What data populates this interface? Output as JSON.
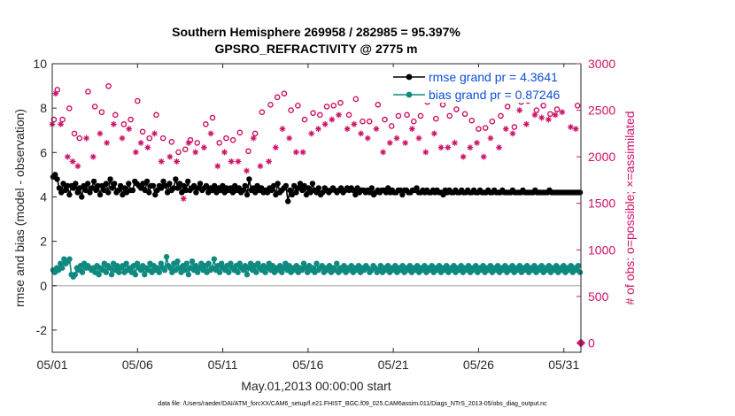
{
  "chart_data": {
    "type": "line",
    "title": "Southern Hemisphere 269958 / 282985 = 95.397%",
    "subtitle": "GPSRO_REFRACTIVITY @ 2775 m",
    "xlabel": "May.01,2013 00:00:00 start",
    "ylabel": "rmse and bias (model - observation)",
    "y2label": "# of obs: o=possible; ×=assimilated",
    "footer": "data file: /Users/raeder/DAI/ATM_forcXX/CAM6_setup/f.e21.FHIST_BGC.f09_025.CAM6assim.011/Diags_NTrS_2013-05/obs_diag_output.nc",
    "x_ticks": [
      "05/01",
      "05/06",
      "05/11",
      "05/16",
      "05/21",
      "05/26",
      "05/31"
    ],
    "x_tick_days": [
      1,
      6,
      11,
      16,
      21,
      26,
      31
    ],
    "xlim": [
      1,
      32
    ],
    "ylim": [
      -3,
      10
    ],
    "y_ticks": [
      "-2",
      "0",
      "2",
      "4",
      "6",
      "8",
      "10"
    ],
    "y_tick_values": [
      -2,
      0,
      2,
      4,
      6,
      8,
      10
    ],
    "y2lim": [
      -100,
      3000
    ],
    "y2_ticks": [
      "0",
      "500",
      "1000",
      "1500",
      "2000",
      "2500",
      "3000"
    ],
    "y2_tick_values": [
      0,
      500,
      1000,
      1500,
      2000,
      2500,
      3000
    ],
    "zero_line": 0,
    "legend_position": "top-right",
    "colors": {
      "rmse": "#000000",
      "bias": "#0f8a80",
      "obs": "#cc1166",
      "zero": "#bdbdbd",
      "legend_text": "#0b4fd6"
    },
    "series": [
      {
        "name": "rmse grand pr = 4.3641",
        "key": "rmse",
        "values": [
          4.9,
          5.0,
          4.8,
          4.4,
          4.2,
          4.6,
          4.3,
          4.5,
          4.1,
          4.5,
          4.4,
          4.6,
          4.2,
          4.4,
          4.0,
          4.5,
          4.3,
          4.6,
          4.2,
          4.4,
          4.7,
          4.3,
          4.5,
          4.1,
          4.5,
          4.3,
          4.6,
          4.2,
          4.8,
          4.4,
          4.6,
          4.2,
          4.3,
          4.5,
          4.1,
          4.4,
          4.2,
          4.6,
          4.3,
          4.3,
          4.7,
          4.6,
          4.5,
          4.4,
          4.6,
          4.3,
          4.7,
          4.2,
          4.5,
          4.5,
          4.1,
          4.3,
          4.5,
          4.4,
          4.7,
          4.5,
          4.2,
          4.6,
          4.3,
          4.4,
          4.8,
          4.4,
          4.6,
          4.2,
          4.5,
          4.3,
          4.7,
          4.3,
          4.4,
          4.5,
          4.2,
          4.4,
          4.6,
          4.3,
          4.4,
          4.5,
          4.2,
          4.4,
          4.3,
          4.5,
          4.2,
          4.4,
          4.3,
          4.5,
          4.2,
          4.4,
          4.3,
          4.4,
          4.2,
          4.5,
          4.3,
          4.4,
          4.2,
          4.3,
          4.5,
          4.1,
          4.8,
          4.3,
          4.4,
          4.2,
          4.5,
          4.3,
          4.4,
          4.2,
          4.3,
          4.2,
          4.4,
          4.3,
          4.5,
          4.1,
          4.6,
          4.2,
          4.3,
          4.4,
          4.5,
          3.8,
          4.3,
          4.1,
          4.5,
          4.2,
          4.4,
          4.6,
          4.3,
          4.5,
          4.1,
          4.4,
          4.2,
          4.6,
          4.3,
          4.2,
          4.4,
          4.1,
          4.2,
          4.4,
          4.3,
          4.2,
          4.3,
          4.4,
          4.3,
          4.2,
          4.3,
          4.4,
          4.2,
          4.3,
          4.4,
          4.3,
          4.4,
          4.3,
          4.1,
          4.4,
          4.2,
          4.3,
          4.3,
          4.2,
          4.3,
          4.2,
          4.4,
          4.1,
          4.2,
          4.3,
          4.2,
          4.3,
          4.3,
          4.2,
          4.4,
          4.2,
          4.3,
          4.2,
          4.2,
          4.3,
          4.3,
          4.1,
          4.3,
          4.3,
          4.2,
          4.2,
          4.3,
          4.3,
          4.4,
          4.2,
          4.2,
          4.3,
          4.2,
          4.3,
          4.2,
          4.2,
          4.3,
          4.2,
          4.3,
          4.2,
          4.2,
          4.1,
          4.3,
          4.2,
          4.3,
          4.2,
          4.2,
          4.3,
          4.2,
          4.2,
          4.3,
          4.2,
          4.2,
          4.3,
          4.2,
          4.2,
          4.3,
          4.2,
          4.2,
          4.3,
          4.2,
          4.2,
          4.2,
          4.3,
          4.2,
          4.2,
          4.3,
          4.2,
          4.2,
          4.2,
          4.3,
          4.2,
          4.2,
          4.2,
          4.2,
          4.3,
          4.2,
          4.2,
          4.2,
          4.2,
          4.3,
          4.2,
          4.2,
          4.2,
          4.2,
          4.2,
          4.3,
          4.2,
          4.2,
          4.2,
          4.2,
          4.2,
          4.2,
          4.3,
          4.2,
          4.2,
          4.2,
          4.2,
          4.2,
          4.2,
          4.2,
          4.2,
          4.2,
          4.2,
          4.2,
          4.2,
          4.2,
          4.2,
          4.2
        ]
      },
      {
        "name": "bias grand pr = 0.87246",
        "key": "bias",
        "values": [
          0.7,
          0.6,
          0.8,
          0.7,
          1.0,
          0.8,
          1.2,
          1.0,
          1.1,
          1.2,
          0.5,
          0.4,
          0.5,
          0.8,
          0.7,
          0.9,
          0.6,
          1.0,
          0.8,
          0.9,
          0.8,
          0.7,
          0.8,
          0.6,
          0.9,
          0.5,
          0.8,
          0.7,
          1.0,
          0.6,
          0.9,
          0.8,
          0.5,
          1.0,
          0.7,
          0.9,
          0.6,
          0.8,
          0.9,
          0.6,
          1.0,
          0.7,
          0.8,
          0.6,
          0.9,
          0.5,
          1.0,
          0.8,
          0.7,
          0.9,
          0.5,
          0.8,
          0.7,
          1.0,
          0.6,
          0.9,
          0.7,
          0.8,
          0.6,
          1.0,
          0.8,
          0.7,
          1.3,
          0.9,
          0.8,
          0.6,
          1.0,
          0.7,
          1.1,
          0.8,
          0.6,
          0.9,
          0.7,
          1.0,
          0.5,
          0.8,
          1.1,
          0.7,
          0.9,
          0.6,
          0.8,
          1.0,
          0.7,
          0.9,
          0.6,
          1.0,
          0.7,
          0.8,
          1.2,
          0.7,
          0.9,
          0.6,
          1.0,
          0.8,
          0.7,
          0.9,
          0.6,
          1.0,
          0.8,
          0.7,
          0.9,
          0.6,
          1.0,
          0.8,
          0.7,
          0.9,
          0.5,
          0.8,
          1.0,
          0.7,
          0.9,
          0.6,
          1.0,
          0.8,
          0.7,
          0.9,
          0.6,
          0.8,
          1.0,
          0.7,
          0.9,
          0.6,
          0.8,
          0.7,
          0.9,
          0.6,
          0.8,
          1.0,
          0.7,
          0.9,
          0.6,
          0.8,
          0.7,
          0.9,
          0.6,
          0.8,
          0.7,
          1.0,
          0.8,
          0.6,
          0.9,
          0.7,
          0.8,
          0.6,
          1.0,
          0.7,
          0.8,
          0.9,
          0.6,
          0.8,
          0.7,
          0.9,
          0.6,
          0.8,
          0.7,
          1.0,
          0.6,
          0.8,
          0.7,
          0.9,
          0.6,
          0.8,
          0.7,
          0.9,
          0.6,
          0.8,
          0.7,
          0.9,
          0.6,
          0.8,
          0.7,
          0.9,
          0.8,
          0.6,
          0.7,
          0.9,
          0.8,
          0.6,
          0.7,
          0.9,
          0.6,
          0.8,
          0.7,
          0.9,
          0.6,
          0.8,
          0.7,
          0.9,
          0.6,
          0.8,
          0.7,
          0.9,
          0.6,
          0.8,
          0.7,
          0.9,
          0.6,
          0.8,
          0.7,
          0.9,
          0.6,
          0.8,
          0.7,
          0.9,
          0.6,
          0.8,
          0.7,
          0.9,
          0.6,
          0.8,
          0.7,
          0.9,
          0.6,
          0.8,
          0.7,
          0.9,
          0.6,
          0.8,
          0.7,
          0.9,
          0.6,
          0.8,
          0.7,
          0.9,
          0.6,
          0.8,
          0.7,
          0.9,
          0.6,
          0.8,
          0.7,
          0.9,
          0.6,
          0.8,
          0.7,
          0.9,
          0.6,
          0.8,
          0.7,
          0.9,
          0.6,
          0.8,
          0.7,
          0.9,
          0.6,
          0.8,
          0.7,
          0.9,
          0.6,
          0.8,
          0.7,
          0.9,
          0.6,
          0.8,
          0.7,
          0.9,
          0.6,
          0.8,
          0.7,
          0.9,
          0.6,
          0.8,
          0.7,
          0.9,
          0.6,
          0.8,
          0.7,
          0.9,
          0.6,
          0.8,
          0.7,
          0.9,
          0.6,
          0.8,
          0.7,
          0.9,
          0.6,
          0.8,
          0.7,
          0.9,
          0.6,
          0.8,
          0.7,
          0.9,
          0.6,
          0.8,
          0.7,
          0.9,
          0.6
        ]
      }
    ],
    "obs_possible": {
      "days": [
        1.1,
        1.3,
        1.6,
        2.0,
        2.3,
        2.6,
        3.1,
        3.5,
        3.9,
        4.3,
        4.7,
        5.2,
        5.6,
        6.0,
        6.3,
        6.7,
        7.1,
        7.5,
        8.0,
        8.4,
        8.8,
        9.1,
        9.5,
        10.0,
        10.4,
        10.8,
        11.2,
        11.6,
        12.0,
        12.5,
        12.9,
        13.3,
        13.8,
        14.2,
        14.6,
        15.0,
        15.4,
        15.8,
        16.3,
        16.7,
        17.1,
        17.5,
        17.9,
        18.4,
        18.8,
        19.2,
        19.6,
        20.1,
        20.5,
        20.9,
        21.3,
        21.8,
        22.2,
        22.6,
        23.0,
        23.5,
        23.9,
        24.3,
        24.7,
        25.2,
        25.6,
        26.0,
        26.4,
        26.8,
        27.3,
        27.7,
        28.1,
        28.5,
        28.9,
        29.4,
        29.8,
        30.2,
        30.6,
        31.0,
        31.5,
        31.8
      ],
      "values": [
        2400,
        2720,
        2400,
        2520,
        2250,
        2200,
        2700,
        2540,
        2480,
        2760,
        2450,
        2350,
        2400,
        2600,
        2270,
        2200,
        2450,
        2200,
        2160,
        2050,
        2080,
        2180,
        2150,
        2350,
        2420,
        2150,
        2200,
        2180,
        2260,
        2060,
        2250,
        2480,
        2560,
        2640,
        2680,
        2500,
        2550,
        2400,
        2470,
        2450,
        2540,
        2550,
        2580,
        2450,
        2620,
        2380,
        2380,
        2560,
        2400,
        2330,
        2440,
        2450,
        2380,
        2440,
        2590,
        2410,
        2560,
        2440,
        2510,
        2460,
        2390,
        2300,
        2310,
        2380,
        2440,
        2540,
        2320,
        2590,
        2600,
        2500,
        2550,
        2460,
        2510,
        2650,
        2640,
        2550
      ]
    },
    "obs_assimilated": {
      "days": [
        1.0,
        1.2,
        1.5,
        1.9,
        2.2,
        2.5,
        3.0,
        3.4,
        3.8,
        4.2,
        4.6,
        5.1,
        5.5,
        5.9,
        6.2,
        6.6,
        7.0,
        7.4,
        7.9,
        8.3,
        8.7,
        9.0,
        9.4,
        9.9,
        10.3,
        10.7,
        11.1,
        11.5,
        11.9,
        12.4,
        12.8,
        13.2,
        13.7,
        14.1,
        14.5,
        14.9,
        15.3,
        15.7,
        16.2,
        16.6,
        17.0,
        17.4,
        17.8,
        18.3,
        18.7,
        19.1,
        19.5,
        20.0,
        20.4,
        20.8,
        21.2,
        21.7,
        22.1,
        22.5,
        22.9,
        23.4,
        23.8,
        24.2,
        24.6,
        25.1,
        25.5,
        25.9,
        26.3,
        26.7,
        27.2,
        27.6,
        28.0,
        28.4,
        28.8,
        29.3,
        29.7,
        30.1,
        30.5,
        30.9,
        31.4,
        31.7
      ],
      "values": [
        2350,
        2680,
        2350,
        2000,
        1950,
        1900,
        2200,
        2000,
        2250,
        2150,
        2350,
        2200,
        2300,
        2050,
        2150,
        2100,
        2250,
        1950,
        2000,
        1950,
        1550,
        2150,
        2050,
        2100,
        2250,
        1900,
        2050,
        1950,
        1950,
        1850,
        2200,
        1900,
        1950,
        2100,
        2300,
        2200,
        2050,
        2050,
        2250,
        2300,
        2350,
        2400,
        2450,
        2300,
        2350,
        2250,
        2200,
        2300,
        2050,
        2150,
        2200,
        2150,
        2300,
        2200,
        2050,
        2250,
        2100,
        2100,
        2150,
        2000,
        2100,
        2150,
        2000,
        2200,
        2100,
        2300,
        2250,
        2500,
        2350,
        2450,
        2420,
        2400,
        2450,
        2480,
        2320,
        2300
      ]
    }
  }
}
